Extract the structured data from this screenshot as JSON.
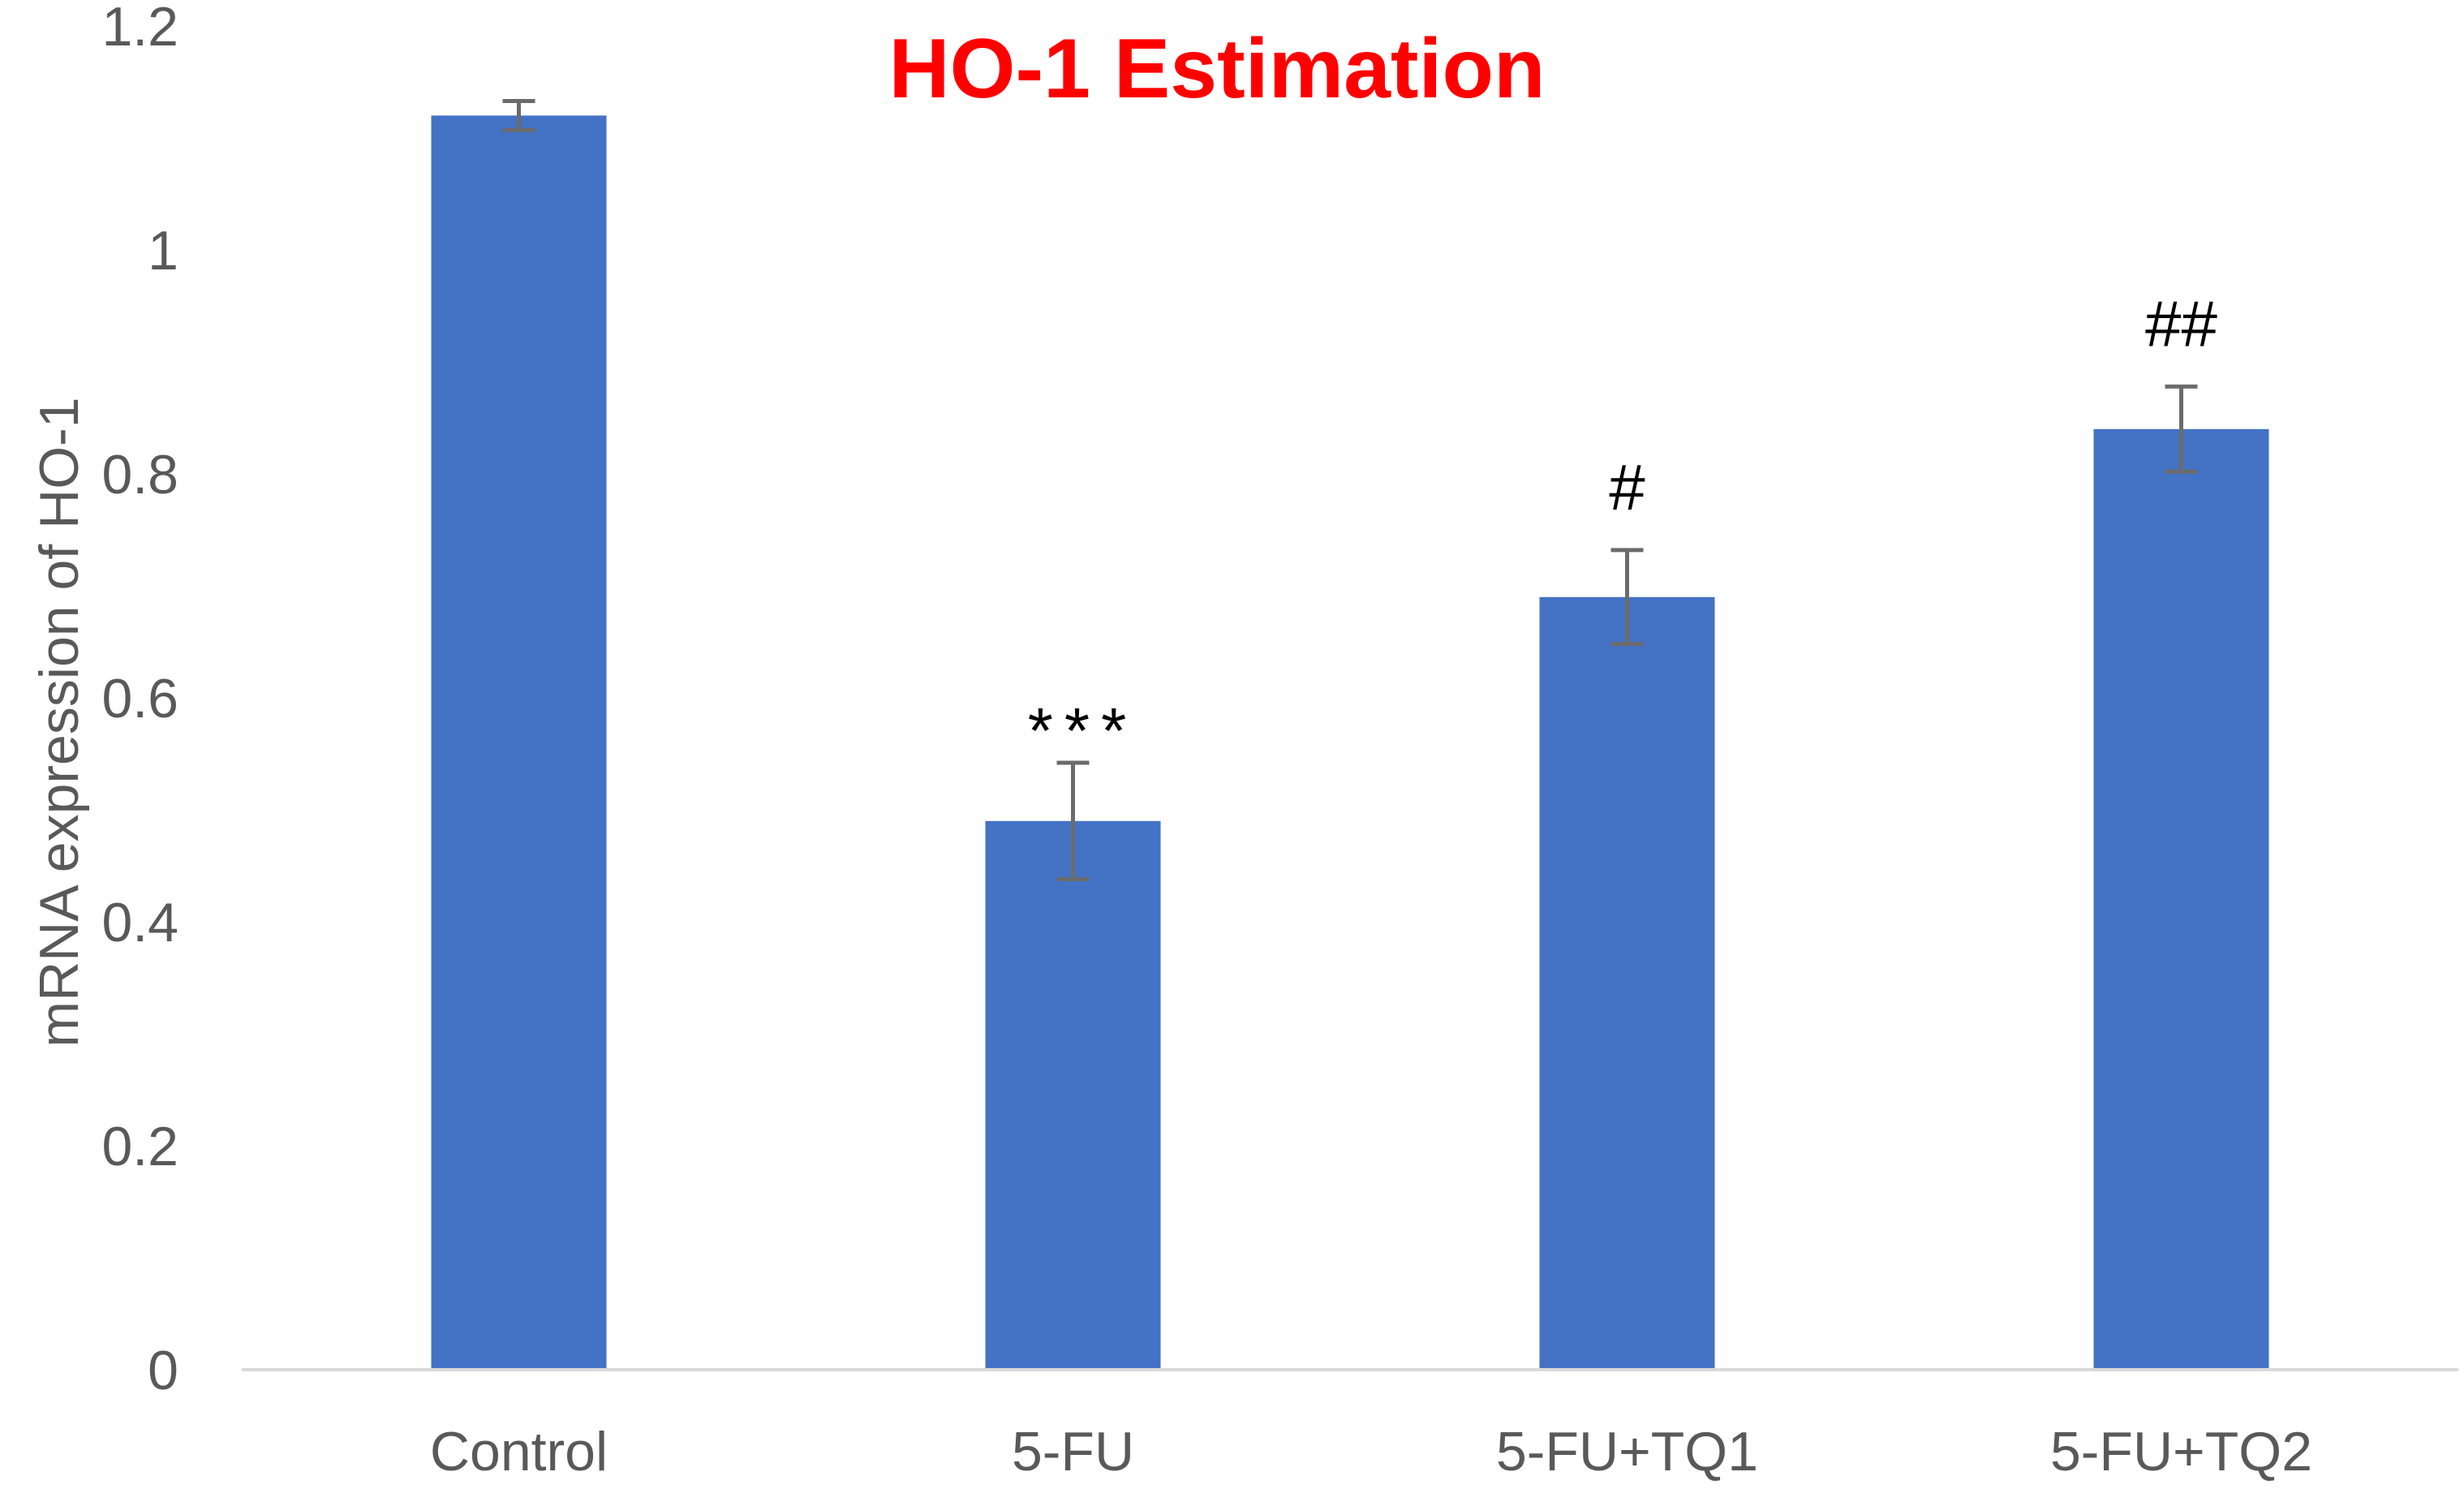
{
  "chart_data": {
    "type": "bar",
    "title": "HO-1 Estimation",
    "xlabel": "",
    "ylabel": "mRNA expression of HO-1",
    "categories": [
      "Control",
      "5-FU",
      "5-FU+TQ1",
      "5-FU+TQ2"
    ],
    "values": [
      1.12,
      0.49,
      0.69,
      0.84
    ],
    "error": [
      0.013,
      0.052,
      0.042,
      0.038
    ],
    "annotations": [
      "",
      "***",
      "#",
      "##"
    ],
    "ylim": [
      0,
      1.2
    ],
    "yticks": [
      "0",
      "0.2",
      "0.4",
      "0.6",
      "0.8",
      "1",
      "1.2"
    ],
    "grid": false,
    "legend": "none",
    "colors": {
      "bar": "#4472c4",
      "error_bar": "#6b6b6b",
      "title": "#ff0000",
      "axis_text": "#595959",
      "axis_line": "#d9d9d9",
      "annotation": "#000000"
    }
  }
}
